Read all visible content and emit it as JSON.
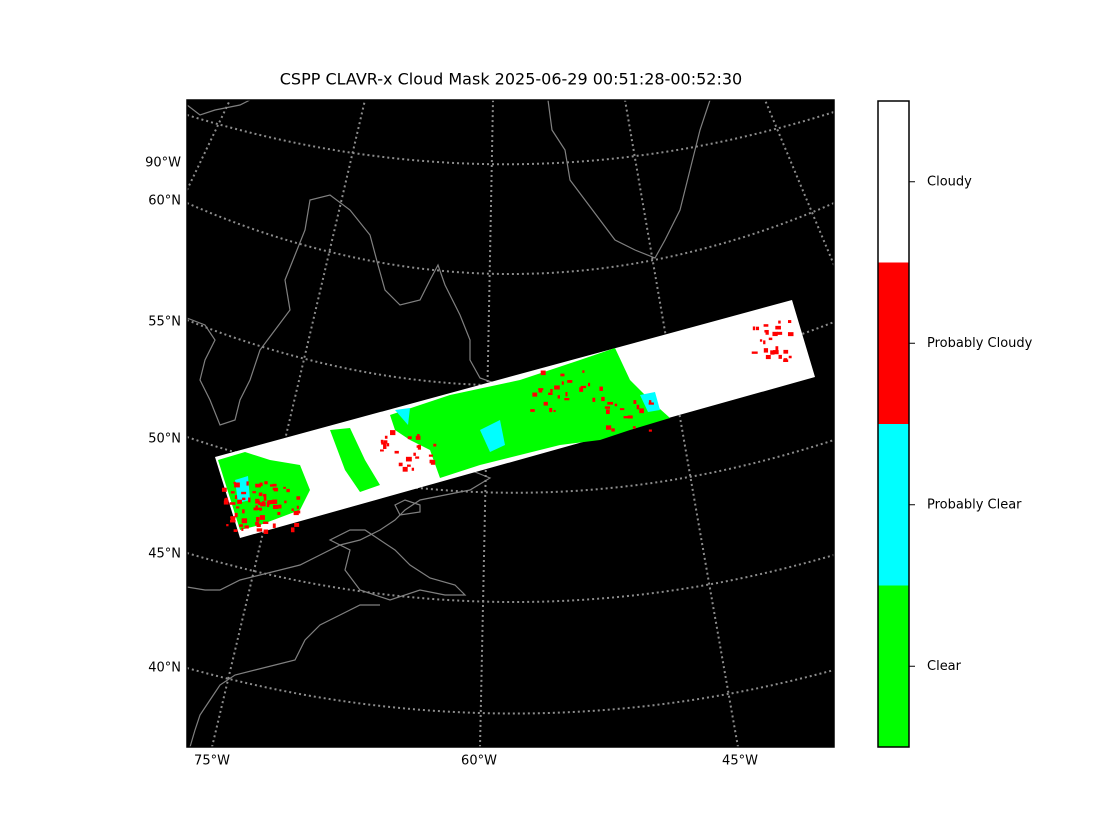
{
  "title": "CSPP CLAVR-x Cloud Mask 2025-06-29 00:51:28-00:52:30",
  "map": {
    "lat_labels": [
      "90°W",
      "60°N",
      "55°N",
      "50°N",
      "45°N",
      "40°N"
    ],
    "lon_labels": [
      "75°W",
      "60°W",
      "45°W"
    ],
    "background": "#000000"
  },
  "colorbar": {
    "categories": [
      {
        "label": "Cloudy",
        "color": "#ffffff"
      },
      {
        "label": "Probably Cloudy",
        "color": "#ff0000"
      },
      {
        "label": "Probably Clear",
        "color": "#00ffff"
      },
      {
        "label": "Clear",
        "color": "#00ff00"
      }
    ]
  }
}
